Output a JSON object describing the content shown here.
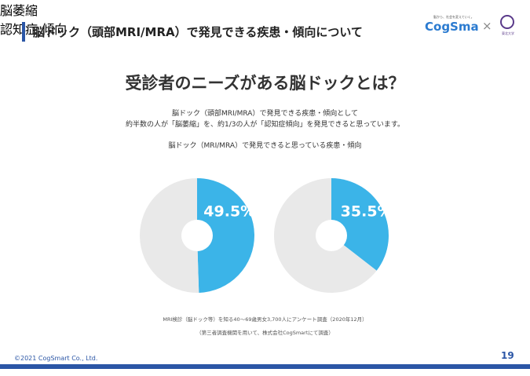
{
  "header": {
    "title": "脳ドック（頭部MRI/MRA）で発見できる疾患・傾向について",
    "logo_tagline": "脳から、社会を変えていく。",
    "logo": "CogSma",
    "logo_separator": "×",
    "partner": "東北大学"
  },
  "heading": "受診者のニーズがある脳ドックとは？",
  "description": [
    "脳ドック（頭部MRI/MRA）で発見できる疾患・傾向として",
    "約半数の人が「脳萎縮」を、約1/3の人が「認知症傾向」を発見できると思っています。"
  ],
  "chart_caption": "脳ドック（MRI/MRA）で発見できると思っている疾患・傾向",
  "chart_data": [
    {
      "type": "pie",
      "categories": [
        "脳萎縮",
        null
      ],
      "values": [
        49.5,
        50.5
      ],
      "value_labels": [
        "49.5%",
        null
      ],
      "colors": [
        "#3bb4e8",
        "#e9e9e9"
      ]
    },
    {
      "type": "pie",
      "categories": [
        "認知症\n傾向",
        null
      ],
      "values": [
        35.5,
        64.5
      ],
      "value_labels": [
        "35.5%",
        null
      ],
      "colors": [
        "#3bb4e8",
        "#e9e9e9"
      ]
    }
  ],
  "notes": [
    "MRI検診（脳ドック等）を知る40〜69歳男女3,700人にアンケート調査（2020年12月）",
    "（第三者調査機関を用いて、株式会社CogSmartにて調査）"
  ],
  "footer": {
    "copyright": "©2021 CogSmart Co., Ltd.",
    "page": "19"
  }
}
